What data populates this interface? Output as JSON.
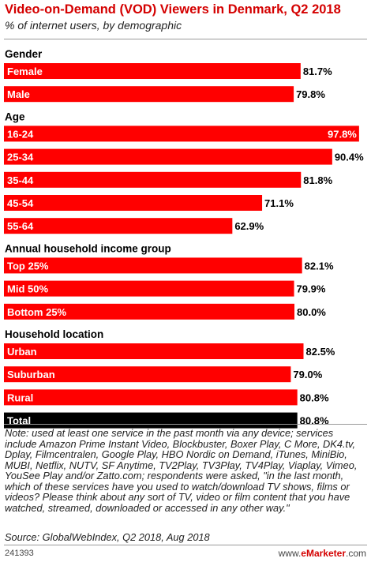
{
  "header": {
    "title": "Video-on-Demand (VOD) Viewers in Denmark, Q2 2018",
    "subtitle": "% of internet users, by demographic"
  },
  "colors": {
    "bar": "#ff0000",
    "total_bar": "#000000",
    "title": "#d40000"
  },
  "chart_data": {
    "type": "bar",
    "orientation": "horizontal",
    "title": "Video-on-Demand (VOD) Viewers in Denmark, Q2 2018",
    "subtitle": "% of internet users, by demographic",
    "xlim": [
      0,
      100
    ],
    "grid": false,
    "groups": [
      {
        "name": "Gender",
        "bars": [
          {
            "label": "Female",
            "value": 81.7,
            "display": "81.7%"
          },
          {
            "label": "Male",
            "value": 79.8,
            "display": "79.8%"
          }
        ]
      },
      {
        "name": "Age",
        "bars": [
          {
            "label": "16-24",
            "value": 97.8,
            "display": "97.8%"
          },
          {
            "label": "25-34",
            "value": 90.4,
            "display": "90.4%"
          },
          {
            "label": "35-44",
            "value": 81.8,
            "display": "81.8%"
          },
          {
            "label": "45-54",
            "value": 71.1,
            "display": "71.1%"
          },
          {
            "label": "55-64",
            "value": 62.9,
            "display": "62.9%"
          }
        ]
      },
      {
        "name": "Annual household income group",
        "bars": [
          {
            "label": "Top 25%",
            "value": 82.1,
            "display": "82.1%"
          },
          {
            "label": "Mid 50%",
            "value": 79.9,
            "display": "79.9%"
          },
          {
            "label": "Bottom 25%",
            "value": 80.0,
            "display": "80.0%"
          }
        ]
      },
      {
        "name": "Household location",
        "bars": [
          {
            "label": "Urban",
            "value": 82.5,
            "display": "82.5%"
          },
          {
            "label": "Suburban",
            "value": 79.0,
            "display": "79.0%"
          },
          {
            "label": "Rural",
            "value": 80.8,
            "display": "80.8%"
          }
        ]
      }
    ],
    "total": {
      "label": "Total",
      "value": 80.8,
      "display": "80.8%"
    }
  },
  "footer": {
    "note": "Note: used at least one service in the past month via any device; services include Amazon Prime Instant Video, Blockbuster, Boxer Play, C More, DK4.tv, Dplay, Filmcentralen, Google Play, HBO Nordic on Demand, iTunes, MiniBio, MUBI, Netflix, NUTV, SF Anytime, TV2Play, TV3Play, TV4Play, Viaplay, Vimeo, YouSee Play and/or Zatto.com; respondents were asked, \"in the last month, which of these services have you used to watch/download TV shows, films or videos? Please think about any sort of TV, video or film content that you have watched, streamed, downloaded or accessed in any other way.\"",
    "source": "Source: GlobalWebIndex, Q2 2018, Aug 2018",
    "chart_id": "241393",
    "brand_prefix": "www.",
    "brand_name": "eMarketer",
    "brand_suffix": ".com"
  }
}
